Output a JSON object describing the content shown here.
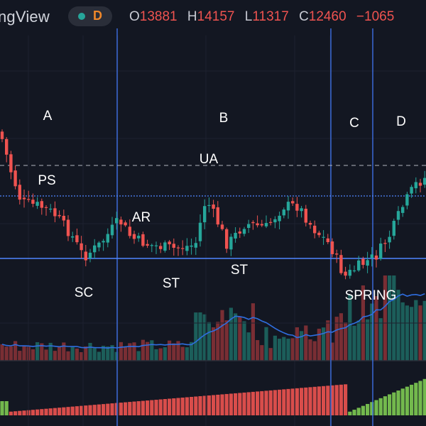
{
  "topbar": {
    "brand": "ngView",
    "interval": "D",
    "ohlc": {
      "open_label": "O",
      "open": "13881",
      "high_label": "H",
      "high": "14157",
      "low_label": "L",
      "low": "11317",
      "close_label": "C",
      "close": "12460",
      "change": "−1065"
    }
  },
  "annotations": {
    "phase_a": "A",
    "phase_b": "B",
    "phase_c": "C",
    "phase_d": "D",
    "ps": "PS",
    "sc": "SC",
    "ar": "AR",
    "st1": "ST",
    "ua": "UA",
    "st2": "ST",
    "spring": "SPRING"
  },
  "colors": {
    "background": "#131722",
    "bull": "#26a69a",
    "bear": "#ef5350",
    "phase_line": "#3d6fe3",
    "ma": "#2f6ee0",
    "dashed": "#b2b5be",
    "osc_green": "#7ecb52",
    "osc_red": "#ef5350"
  }
}
